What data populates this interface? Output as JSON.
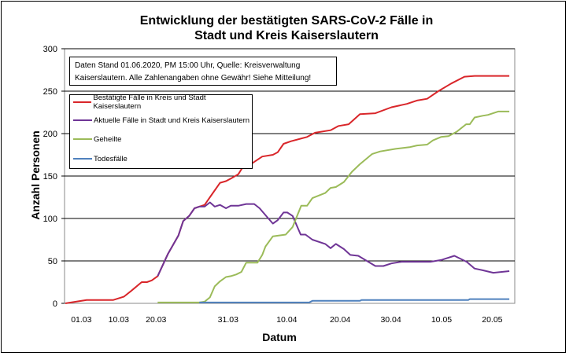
{
  "chart_data": {
    "type": "line",
    "title_line1": "Entwicklung der bestätigten SARS-CoV-2 Fälle in",
    "title_line2": "Stadt und Kreis Kaiserslautern",
    "note_line1": "Daten Stand 01.06.2020, PM 15:00 Uhr, Quelle: Kreisverwaltung",
    "note_line2": "Kaiserslautern. Alle Zahlenangaben ohne Gewähr! Siehe Mitteilung!",
    "xlabel": "Datum",
    "ylabel": "Anzahl Personen",
    "ylim": [
      0,
      300
    ],
    "yticks": [
      0,
      50,
      100,
      150,
      200,
      250,
      300
    ],
    "xlim_days_since_0103": [
      0,
      84.5
    ],
    "xticks": [
      {
        "label": "01.03",
        "day": 3
      },
      {
        "label": "10.03",
        "day": 10
      },
      {
        "label": "20.03",
        "day": 17
      },
      {
        "label": "31.03",
        "day": 30.5
      },
      {
        "label": "10.04",
        "day": 41.5
      },
      {
        "label": "20.04",
        "day": 51.5
      },
      {
        "label": "30.04",
        "day": 61
      },
      {
        "label": "10.05",
        "day": 70.5
      },
      {
        "label": "20.05",
        "day": 80
      }
    ],
    "grid": "horizontal",
    "legend_placement": "top-left",
    "series": [
      {
        "name": "Bestätigte Fälle in Kreis und Stadt Kaiserslautern",
        "color": "#d9262a",
        "points": [
          [
            0,
            0
          ],
          [
            4,
            4
          ],
          [
            9,
            4
          ],
          [
            11,
            8
          ],
          [
            12.4,
            15
          ],
          [
            14.3,
            25
          ],
          [
            15.3,
            25
          ],
          [
            16.2,
            27
          ],
          [
            17.3,
            32
          ],
          [
            19.2,
            58
          ],
          [
            21.2,
            80
          ],
          [
            22.1,
            97
          ],
          [
            23.2,
            103
          ],
          [
            24.2,
            112
          ],
          [
            25.1,
            114
          ],
          [
            26.1,
            116
          ],
          [
            27.1,
            125
          ],
          [
            29,
            142
          ],
          [
            30.1,
            144
          ],
          [
            31,
            147
          ],
          [
            32.4,
            152
          ],
          [
            33.5,
            163
          ],
          [
            35,
            165
          ],
          [
            36.9,
            173
          ],
          [
            38.9,
            175
          ],
          [
            39.8,
            178
          ],
          [
            40.9,
            188
          ],
          [
            42.3,
            191
          ],
          [
            45.3,
            196
          ],
          [
            46.8,
            201
          ],
          [
            49.7,
            204
          ],
          [
            51.2,
            209
          ],
          [
            53.1,
            211
          ],
          [
            55.2,
            223
          ],
          [
            58.1,
            224
          ],
          [
            61.1,
            231
          ],
          [
            64,
            235
          ],
          [
            65.9,
            239
          ],
          [
            67.8,
            241
          ],
          [
            69.9,
            250
          ],
          [
            72.3,
            259
          ],
          [
            74.8,
            267
          ],
          [
            76.7,
            268
          ],
          [
            80.2,
            268
          ],
          [
            83.2,
            268
          ]
        ]
      },
      {
        "name": "Aktuelle Fälle in Stadt und Kreis Kaiserslautern",
        "color": "#6f3596",
        "points": [
          [
            17.3,
            32
          ],
          [
            19.2,
            58
          ],
          [
            21.2,
            80
          ],
          [
            22.1,
            97
          ],
          [
            23.2,
            103
          ],
          [
            24.2,
            112
          ],
          [
            25.1,
            114
          ],
          [
            26.1,
            114
          ],
          [
            27.1,
            119
          ],
          [
            28,
            114
          ],
          [
            29,
            116
          ],
          [
            30.1,
            112
          ],
          [
            31,
            115
          ],
          [
            32.4,
            115
          ],
          [
            33.9,
            117
          ],
          [
            35.4,
            117
          ],
          [
            36.4,
            112
          ],
          [
            37.9,
            101
          ],
          [
            38.9,
            94
          ],
          [
            39.8,
            98
          ],
          [
            40.9,
            107
          ],
          [
            41.6,
            107
          ],
          [
            42.6,
            103
          ],
          [
            44.1,
            81
          ],
          [
            45,
            81
          ],
          [
            46.3,
            75
          ],
          [
            48.7,
            70
          ],
          [
            49.7,
            65
          ],
          [
            50.7,
            70
          ],
          [
            52.2,
            64
          ],
          [
            53.4,
            57
          ],
          [
            54.9,
            56
          ],
          [
            58.1,
            44
          ],
          [
            59.6,
            44
          ],
          [
            61.1,
            47
          ],
          [
            63,
            49
          ],
          [
            68.4,
            49
          ],
          [
            70.4,
            51
          ],
          [
            72.9,
            56
          ],
          [
            75.2,
            49
          ],
          [
            76.7,
            41
          ],
          [
            78.2,
            39
          ],
          [
            80.2,
            36
          ],
          [
            83.2,
            38
          ]
        ]
      },
      {
        "name": "Geheilte",
        "color": "#9bbb59",
        "points": [
          [
            17.3,
            1
          ],
          [
            25.1,
            1
          ],
          [
            26.1,
            2
          ],
          [
            27.1,
            7
          ],
          [
            28,
            20
          ],
          [
            29,
            26
          ],
          [
            30.1,
            31
          ],
          [
            31,
            32
          ],
          [
            32,
            34
          ],
          [
            33,
            37
          ],
          [
            33.9,
            48
          ],
          [
            36,
            48
          ],
          [
            36.9,
            57
          ],
          [
            37.5,
            67
          ],
          [
            38.9,
            79
          ],
          [
            41.3,
            81
          ],
          [
            42.6,
            90
          ],
          [
            44.2,
            115
          ],
          [
            45.3,
            115
          ],
          [
            46.3,
            124
          ],
          [
            48.7,
            130
          ],
          [
            49.7,
            136
          ],
          [
            50.7,
            137
          ],
          [
            52.2,
            143
          ],
          [
            53.7,
            155
          ],
          [
            55.2,
            164
          ],
          [
            57.5,
            176
          ],
          [
            59,
            179
          ],
          [
            61.9,
            182
          ],
          [
            64.5,
            184
          ],
          [
            65.9,
            186
          ],
          [
            67.8,
            187
          ],
          [
            68.9,
            192
          ],
          [
            70.4,
            196
          ],
          [
            71.8,
            197
          ],
          [
            73.3,
            202
          ],
          [
            75.1,
            211
          ],
          [
            75.8,
            211
          ],
          [
            76.7,
            219
          ],
          [
            78.2,
            221
          ],
          [
            79.2,
            222
          ],
          [
            81.1,
            226
          ],
          [
            83.2,
            226
          ]
        ]
      },
      {
        "name": "Todesfälle",
        "color": "#4f81bd",
        "points": [
          [
            25.1,
            1
          ],
          [
            45.7,
            1
          ],
          [
            46.3,
            3
          ],
          [
            55.2,
            3
          ],
          [
            55.5,
            4
          ],
          [
            75.5,
            4
          ],
          [
            75.8,
            5
          ],
          [
            83.2,
            5
          ]
        ]
      }
    ]
  }
}
